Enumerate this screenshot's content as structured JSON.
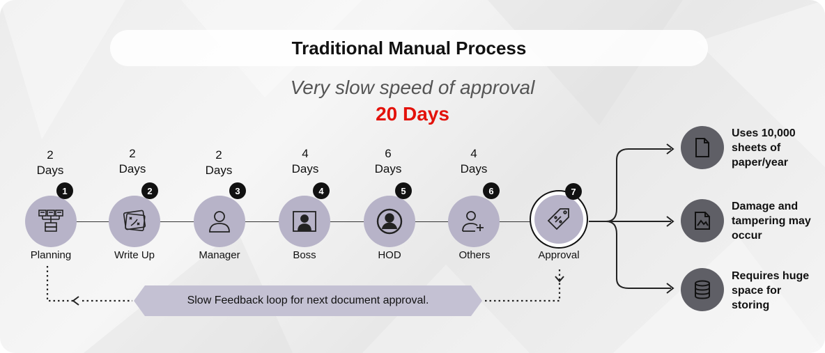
{
  "title": "Traditional Manual Process",
  "subtitle": "Very slow speed of approval",
  "total": "20 Days",
  "steps": [
    {
      "number": "1",
      "days_value": "2",
      "days_unit": "Days",
      "label": "Planning",
      "icon": "server-network-icon"
    },
    {
      "number": "2",
      "days_value": "2",
      "days_unit": "Days",
      "label": "Write Up",
      "icon": "strategy-board-icon"
    },
    {
      "number": "3",
      "days_value": "2",
      "days_unit": "Days",
      "label": "Manager",
      "icon": "user-icon"
    },
    {
      "number": "4",
      "days_value": "4",
      "days_unit": "Days",
      "label": "Boss",
      "icon": "presenter-board-icon"
    },
    {
      "number": "5",
      "days_value": "6",
      "days_unit": "Days",
      "label": "HOD",
      "icon": "user-circle-icon"
    },
    {
      "number": "6",
      "days_value": "4",
      "days_unit": "Days",
      "label": "Others",
      "icon": "user-plus-icon"
    },
    {
      "number": "7",
      "label": "Approval",
      "icon": "tag-percent-icon"
    }
  ],
  "feedback": "Slow Feedback loop for next document approval.",
  "impacts": [
    {
      "lines": [
        "Uses 10,000",
        "sheets of",
        "paper/year"
      ],
      "icon": "document-icon"
    },
    {
      "lines": [
        "Damage and",
        "tampering may",
        "occur"
      ],
      "icon": "damaged-image-icon"
    },
    {
      "lines": [
        "Requires huge",
        "space for",
        "storing"
      ],
      "icon": "database-icon"
    }
  ],
  "colors": {
    "accent": "#e3120b",
    "node": "#b7b3c8",
    "impact_icon_bg": "#5f5f66",
    "feedback_bg": "#c4c1d3"
  }
}
